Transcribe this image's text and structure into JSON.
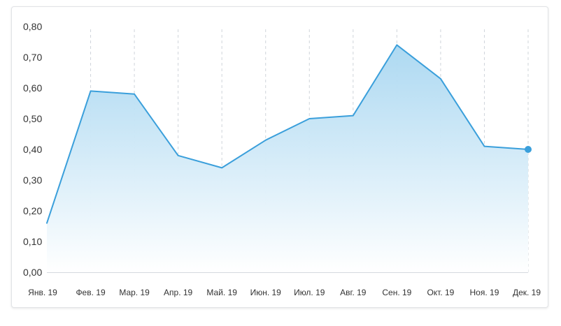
{
  "colors": {
    "line": "#3a9fdb",
    "area_top": "#a9d7f1",
    "area_bottom": "#ffffff",
    "grid": "#cfd4da",
    "axis": "#d5d9de",
    "text": "#333333"
  },
  "chart_data": {
    "type": "area",
    "title": "",
    "xlabel": "",
    "ylabel": "",
    "categories": [
      "Янв. 19",
      "Фев. 19",
      "Мар. 19",
      "Апр. 19",
      "Май. 19",
      "Июн. 19",
      "Июл. 19",
      "Авг. 19",
      "Сен. 19",
      "Окт. 19",
      "Ноя. 19",
      "Дек. 19"
    ],
    "values": [
      0.16,
      0.59,
      0.58,
      0.38,
      0.34,
      0.43,
      0.5,
      0.51,
      0.74,
      0.63,
      0.41,
      0.4
    ],
    "ylim": [
      0,
      0.8
    ],
    "yticks": [
      "0,00",
      "0,10",
      "0,20",
      "0,30",
      "0,40",
      "0,50",
      "0,60",
      "0,70",
      "0,80"
    ],
    "grid": "vertical-dashed",
    "legend": "none",
    "highlight_last_point": true
  }
}
